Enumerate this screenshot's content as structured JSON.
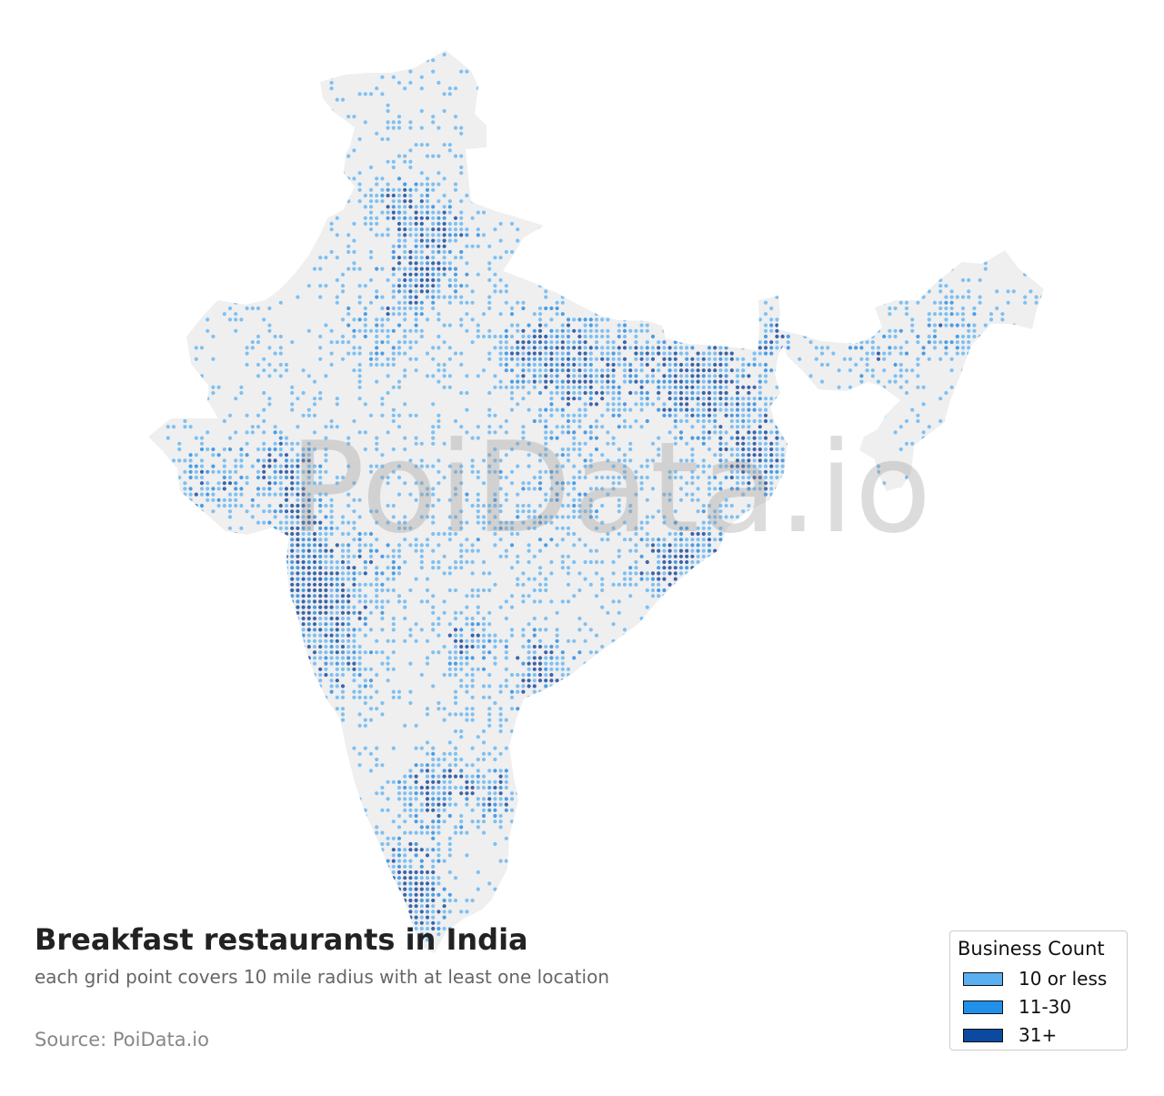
{
  "map": {
    "land_color": "#efefef",
    "watermark": "PoiData.io"
  },
  "title": "Breakfast restaurants in India",
  "subtitle": "each grid point covers 10 mile radius with at least one location",
  "source": "Source: PoiData.io",
  "legend": {
    "title": "Business Count",
    "items": [
      {
        "label": "10 or less",
        "color": "#5aaff0",
        "dot_color": "#7ec0f2"
      },
      {
        "label": "11-30",
        "color": "#2090ea",
        "dot_color": "#4a9de6"
      },
      {
        "label": "31+",
        "color": "#0b4aa0",
        "dot_color": "#3c64ab"
      }
    ]
  }
}
